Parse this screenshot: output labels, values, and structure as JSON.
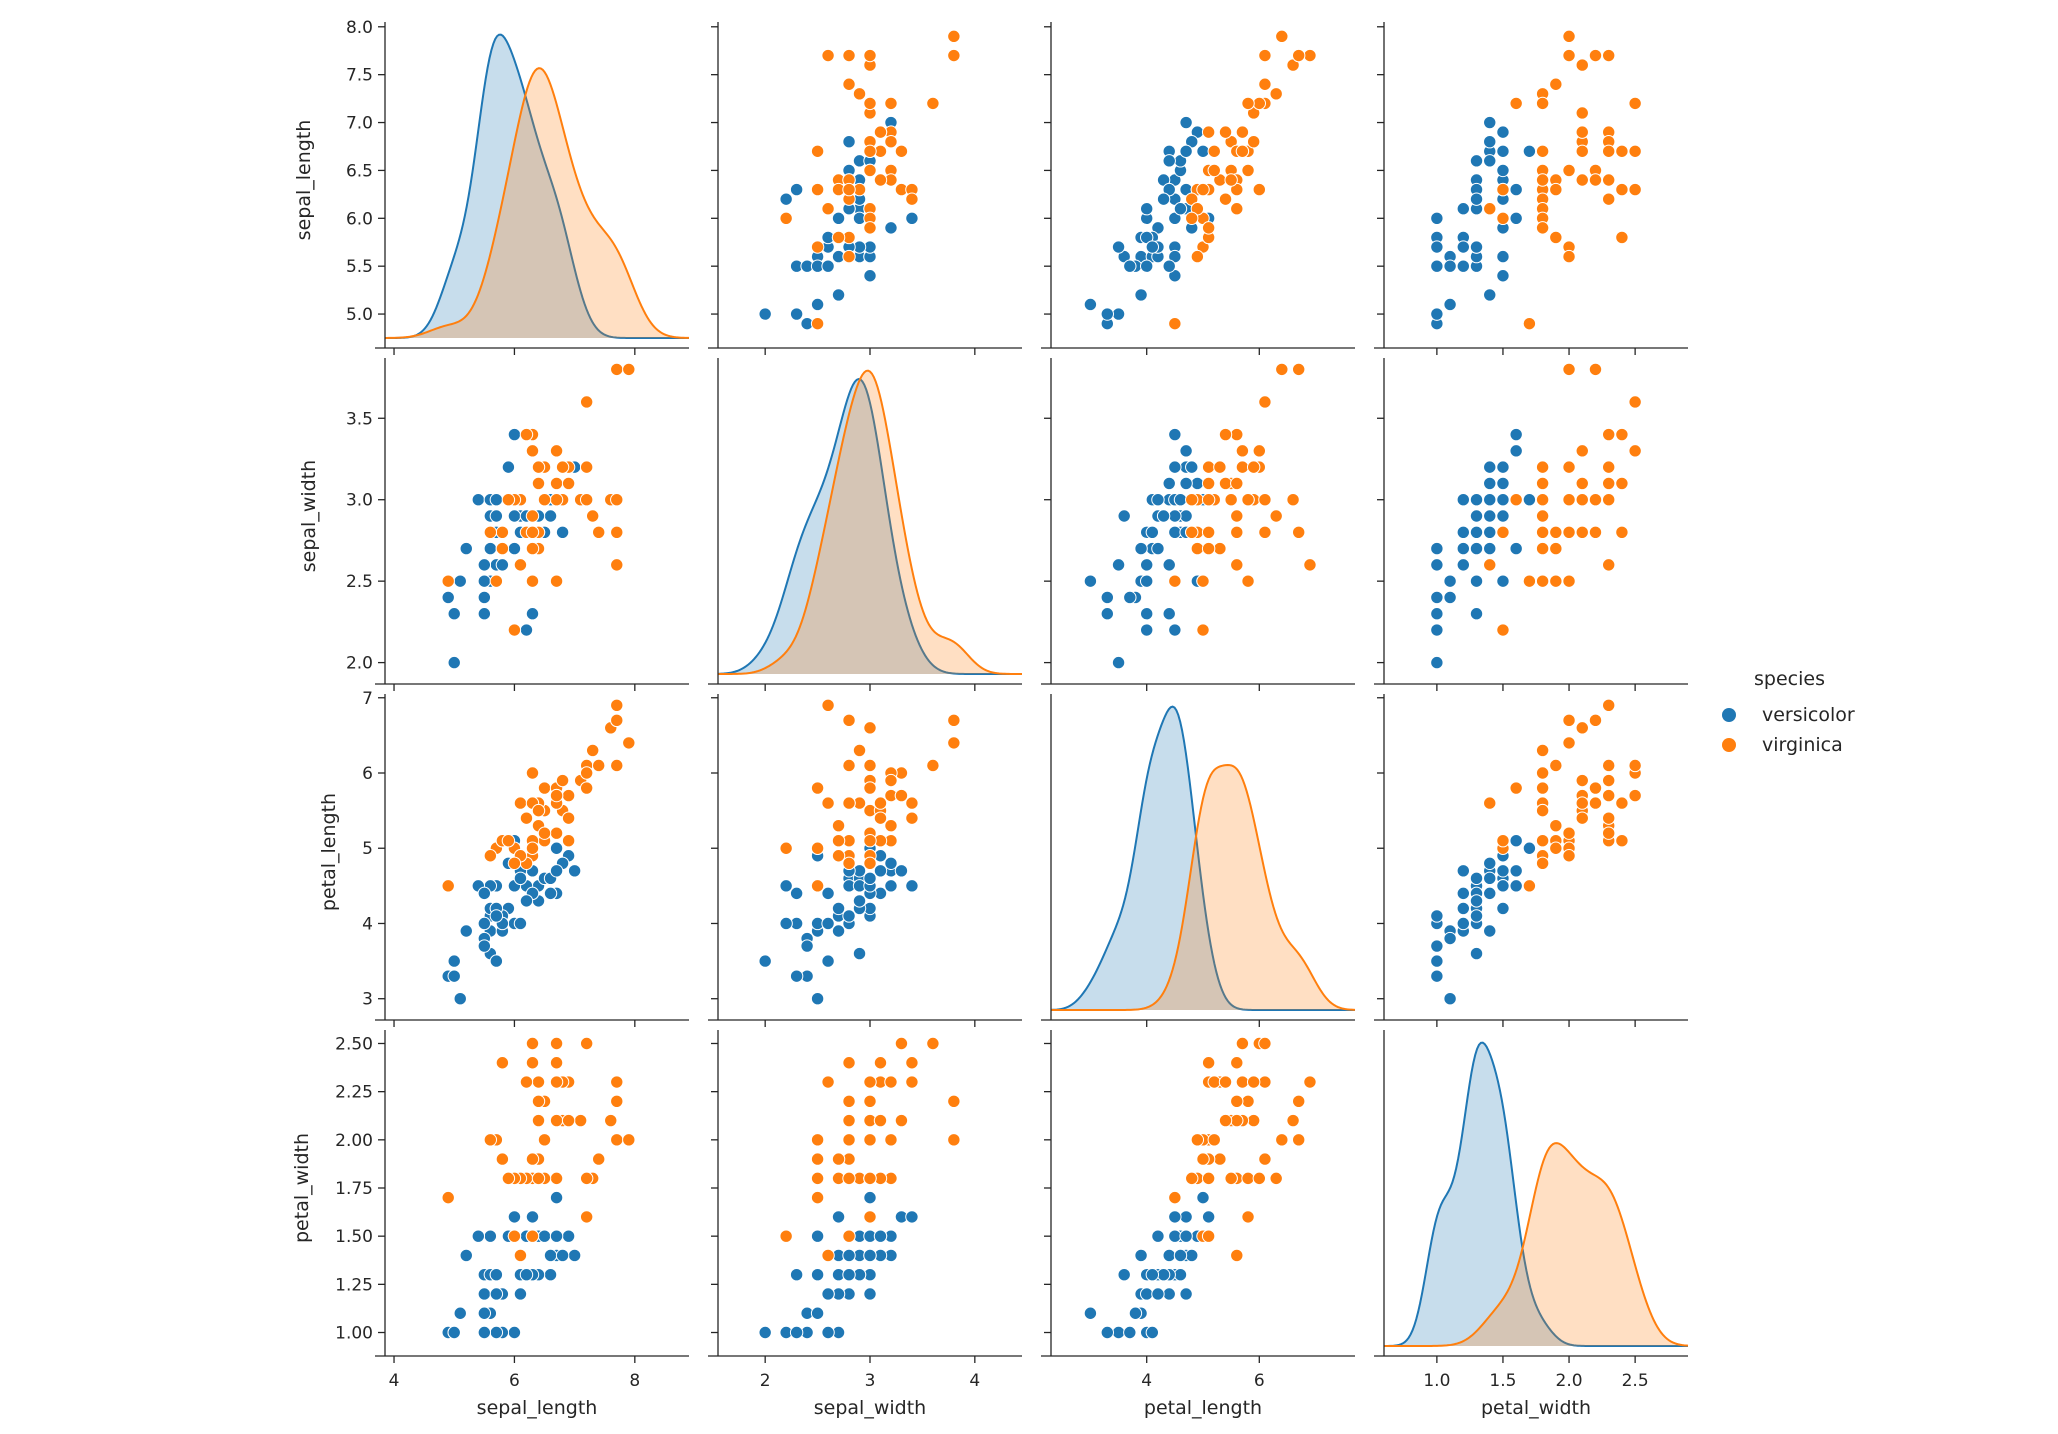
{
  "legend": {
    "title": "species",
    "items": [
      {
        "label": "versicolor",
        "color": "#1f77b4"
      },
      {
        "label": "virginica",
        "color": "#ff7f0e"
      }
    ]
  },
  "chart_data": {
    "type": "pairplot",
    "hue": "species",
    "diag_kind": "kde",
    "variables": [
      "sepal_length",
      "sepal_width",
      "petal_length",
      "petal_width"
    ],
    "axes": {
      "sepal_length": {
        "range": [
          3.85,
          8.9
        ],
        "ticks": [
          4,
          6,
          8
        ],
        "tick_labels": [
          "4",
          "6",
          "8"
        ],
        "ylim": [
          4.75,
          8.05
        ],
        "yticks": [
          5.0,
          5.5,
          6.0,
          6.5,
          7.0,
          7.5,
          8.0
        ],
        "ytick_labels": [
          "5.0",
          "5.5",
          "6.0",
          "6.5",
          "7.0",
          "7.5",
          "8.0"
        ]
      },
      "sepal_width": {
        "range": [
          1.55,
          4.45
        ],
        "ticks": [
          2,
          3,
          4
        ],
        "tick_labels": [
          "2",
          "3",
          "4"
        ],
        "ylim": [
          1.93,
          3.87
        ],
        "yticks": [
          2.0,
          2.5,
          3.0,
          3.5
        ],
        "ytick_labels": [
          "2.0",
          "2.5",
          "3.0",
          "3.5"
        ]
      },
      "petal_length": {
        "range": [
          2.3,
          7.7
        ],
        "ticks": [
          4,
          6
        ],
        "tick_labels": [
          "4",
          "6"
        ],
        "ylim": [
          2.85,
          7.05
        ],
        "yticks": [
          3,
          4,
          5,
          6,
          7
        ],
        "ytick_labels": [
          "3",
          "4",
          "5",
          "6",
          "7"
        ]
      },
      "petal_width": {
        "range": [
          0.6,
          2.9
        ],
        "ticks": [
          1.0,
          1.5,
          2.0,
          2.5
        ],
        "tick_labels": [
          "1.0",
          "1.5",
          "2.0",
          "2.5"
        ],
        "ylim": [
          0.93,
          2.57
        ],
        "yticks": [
          1.0,
          1.25,
          1.5,
          1.75,
          2.0,
          2.25,
          2.5
        ],
        "ytick_labels": [
          "1.00",
          "1.25",
          "1.50",
          "1.75",
          "2.00",
          "2.25",
          "2.50"
        ]
      }
    },
    "series": [
      {
        "name": "versicolor",
        "color": "#1f77b4",
        "points": [
          [
            7.0,
            3.2,
            4.7,
            1.4
          ],
          [
            6.4,
            3.2,
            4.5,
            1.5
          ],
          [
            6.9,
            3.1,
            4.9,
            1.5
          ],
          [
            5.5,
            2.3,
            4.0,
            1.3
          ],
          [
            6.5,
            2.8,
            4.6,
            1.5
          ],
          [
            5.7,
            2.8,
            4.5,
            1.3
          ],
          [
            6.3,
            3.3,
            4.7,
            1.6
          ],
          [
            4.9,
            2.4,
            3.3,
            1.0
          ],
          [
            6.6,
            2.9,
            4.6,
            1.3
          ],
          [
            5.2,
            2.7,
            3.9,
            1.4
          ],
          [
            5.0,
            2.0,
            3.5,
            1.0
          ],
          [
            5.9,
            3.0,
            4.2,
            1.5
          ],
          [
            6.0,
            2.2,
            4.0,
            1.0
          ],
          [
            6.1,
            2.9,
            4.7,
            1.4
          ],
          [
            5.6,
            2.9,
            3.6,
            1.3
          ],
          [
            6.7,
            3.1,
            4.4,
            1.4
          ],
          [
            5.6,
            3.0,
            4.5,
            1.5
          ],
          [
            5.8,
            2.7,
            4.1,
            1.0
          ],
          [
            6.2,
            2.2,
            4.5,
            1.5
          ],
          [
            5.6,
            2.5,
            3.9,
            1.1
          ],
          [
            5.9,
            3.2,
            4.8,
            1.8
          ],
          [
            6.1,
            2.8,
            4.0,
            1.3
          ],
          [
            6.3,
            2.5,
            4.9,
            1.5
          ],
          [
            6.1,
            2.8,
            4.7,
            1.2
          ],
          [
            6.4,
            2.9,
            4.3,
            1.3
          ],
          [
            6.6,
            3.0,
            4.4,
            1.4
          ],
          [
            6.8,
            2.8,
            4.8,
            1.4
          ],
          [
            6.7,
            3.0,
            5.0,
            1.7
          ],
          [
            6.0,
            2.9,
            4.5,
            1.5
          ],
          [
            5.7,
            2.6,
            3.5,
            1.0
          ],
          [
            5.5,
            2.4,
            3.8,
            1.1
          ],
          [
            5.5,
            2.4,
            3.7,
            1.0
          ],
          [
            5.8,
            2.7,
            3.9,
            1.2
          ],
          [
            6.0,
            2.7,
            5.1,
            1.6
          ],
          [
            5.4,
            3.0,
            4.5,
            1.5
          ],
          [
            6.0,
            3.4,
            4.5,
            1.6
          ],
          [
            6.7,
            3.1,
            4.7,
            1.5
          ],
          [
            6.3,
            2.3,
            4.4,
            1.3
          ],
          [
            5.6,
            3.0,
            4.1,
            1.3
          ],
          [
            5.5,
            2.5,
            4.0,
            1.3
          ],
          [
            5.5,
            2.6,
            4.4,
            1.2
          ],
          [
            6.1,
            3.0,
            4.6,
            1.4
          ],
          [
            5.8,
            2.6,
            4.0,
            1.2
          ],
          [
            5.0,
            2.3,
            3.3,
            1.0
          ],
          [
            5.6,
            2.7,
            4.2,
            1.3
          ],
          [
            5.7,
            3.0,
            4.2,
            1.2
          ],
          [
            5.7,
            2.9,
            4.2,
            1.3
          ],
          [
            6.2,
            2.9,
            4.3,
            1.3
          ],
          [
            5.1,
            2.5,
            3.0,
            1.1
          ],
          [
            5.7,
            2.8,
            4.1,
            1.3
          ]
        ]
      },
      {
        "name": "virginica",
        "color": "#ff7f0e",
        "points": [
          [
            6.3,
            3.3,
            6.0,
            2.5
          ],
          [
            5.8,
            2.7,
            5.1,
            1.9
          ],
          [
            7.1,
            3.0,
            5.9,
            2.1
          ],
          [
            6.3,
            2.9,
            5.6,
            1.8
          ],
          [
            6.5,
            3.0,
            5.8,
            2.2
          ],
          [
            7.6,
            3.0,
            6.6,
            2.1
          ],
          [
            4.9,
            2.5,
            4.5,
            1.7
          ],
          [
            7.3,
            2.9,
            6.3,
            1.8
          ],
          [
            6.7,
            2.5,
            5.8,
            1.8
          ],
          [
            7.2,
            3.6,
            6.1,
            2.5
          ],
          [
            6.5,
            3.2,
            5.1,
            2.0
          ],
          [
            6.4,
            2.7,
            5.3,
            1.9
          ],
          [
            6.8,
            3.0,
            5.5,
            2.1
          ],
          [
            5.7,
            2.5,
            5.0,
            2.0
          ],
          [
            5.8,
            2.8,
            5.1,
            2.4
          ],
          [
            6.4,
            3.2,
            5.3,
            2.3
          ],
          [
            6.5,
            3.0,
            5.5,
            1.8
          ],
          [
            7.7,
            3.8,
            6.7,
            2.2
          ],
          [
            7.7,
            2.6,
            6.9,
            2.3
          ],
          [
            6.0,
            2.2,
            5.0,
            1.5
          ],
          [
            6.9,
            3.2,
            5.7,
            2.3
          ],
          [
            5.6,
            2.8,
            4.9,
            2.0
          ],
          [
            7.7,
            2.8,
            6.7,
            2.0
          ],
          [
            6.3,
            2.7,
            4.9,
            1.8
          ],
          [
            6.7,
            3.3,
            5.7,
            2.1
          ],
          [
            7.2,
            3.2,
            6.0,
            1.8
          ],
          [
            6.2,
            2.8,
            4.8,
            1.8
          ],
          [
            6.1,
            3.0,
            4.9,
            1.8
          ],
          [
            6.4,
            2.8,
            5.6,
            2.1
          ],
          [
            7.2,
            3.0,
            5.8,
            1.6
          ],
          [
            7.4,
            2.8,
            6.1,
            1.9
          ],
          [
            7.9,
            3.8,
            6.4,
            2.0
          ],
          [
            6.4,
            2.8,
            5.6,
            2.2
          ],
          [
            6.3,
            2.8,
            5.1,
            1.5
          ],
          [
            6.1,
            2.6,
            5.6,
            1.4
          ],
          [
            7.7,
            3.0,
            6.1,
            2.3
          ],
          [
            6.3,
            3.4,
            5.6,
            2.4
          ],
          [
            6.4,
            3.1,
            5.5,
            1.8
          ],
          [
            6.0,
            3.0,
            4.8,
            1.8
          ],
          [
            6.9,
            3.1,
            5.4,
            2.1
          ],
          [
            6.7,
            3.1,
            5.6,
            2.4
          ],
          [
            6.9,
            3.1,
            5.1,
            2.3
          ],
          [
            5.8,
            2.7,
            5.1,
            1.9
          ],
          [
            6.8,
            3.2,
            5.9,
            2.3
          ],
          [
            6.7,
            3.3,
            5.7,
            2.5
          ],
          [
            6.7,
            3.0,
            5.2,
            2.3
          ],
          [
            6.3,
            2.5,
            5.0,
            1.9
          ],
          [
            6.5,
            3.0,
            5.2,
            2.0
          ],
          [
            6.2,
            3.4,
            5.4,
            2.3
          ],
          [
            5.9,
            3.0,
            5.1,
            1.8
          ]
        ]
      }
    ]
  }
}
